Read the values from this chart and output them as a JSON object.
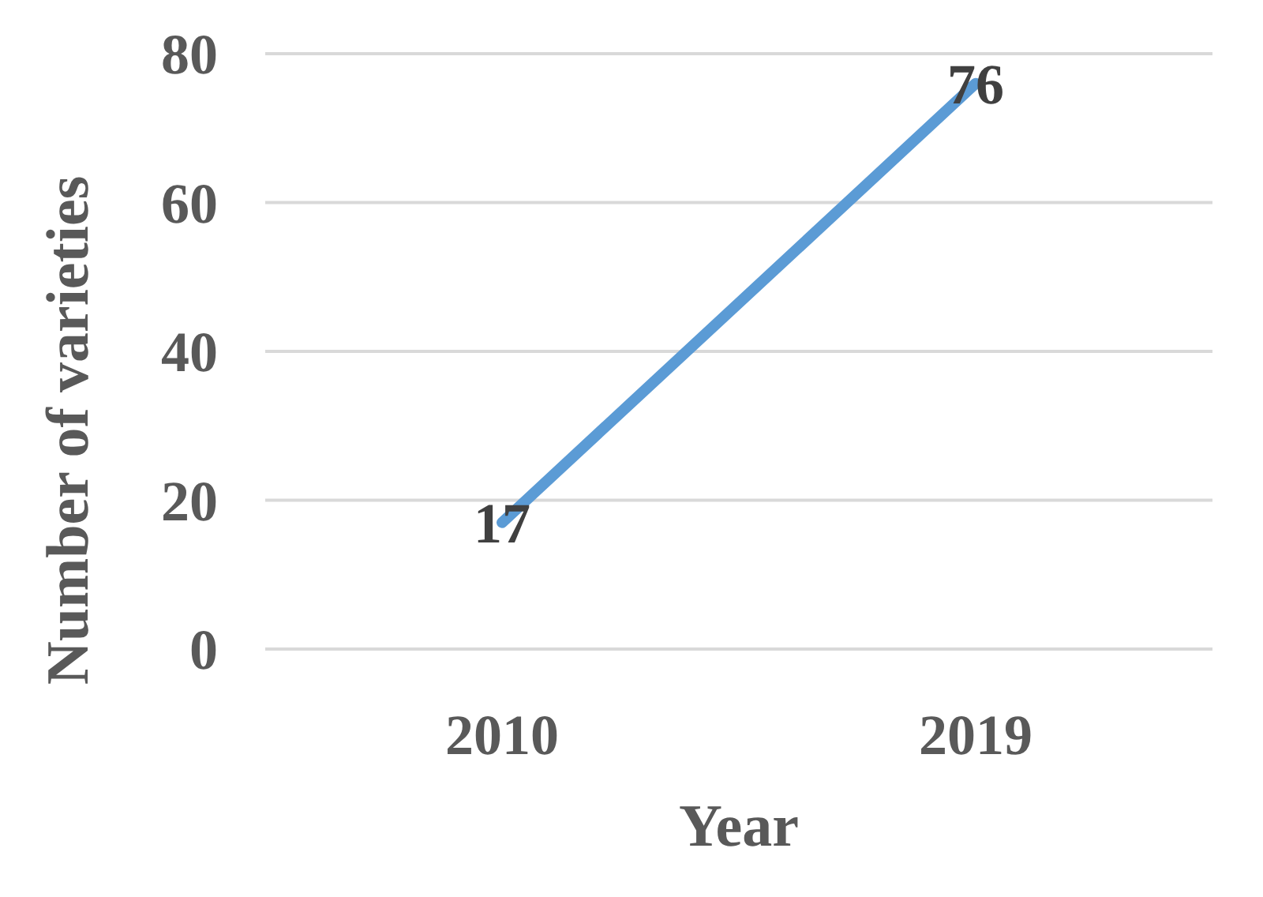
{
  "chart_data": {
    "type": "line",
    "xlabel": "Year",
    "ylabel": "Number of varieties",
    "categories": [
      "2010",
      "2019"
    ],
    "series": [
      {
        "color": "#5b9bd5",
        "values": [
          17,
          76
        ]
      }
    ],
    "ylim": [
      0,
      80
    ],
    "yticks": [
      0,
      20,
      40,
      60,
      80
    ],
    "grid": "y",
    "data_labels": true,
    "marker": "none",
    "line_style": "solid"
  }
}
